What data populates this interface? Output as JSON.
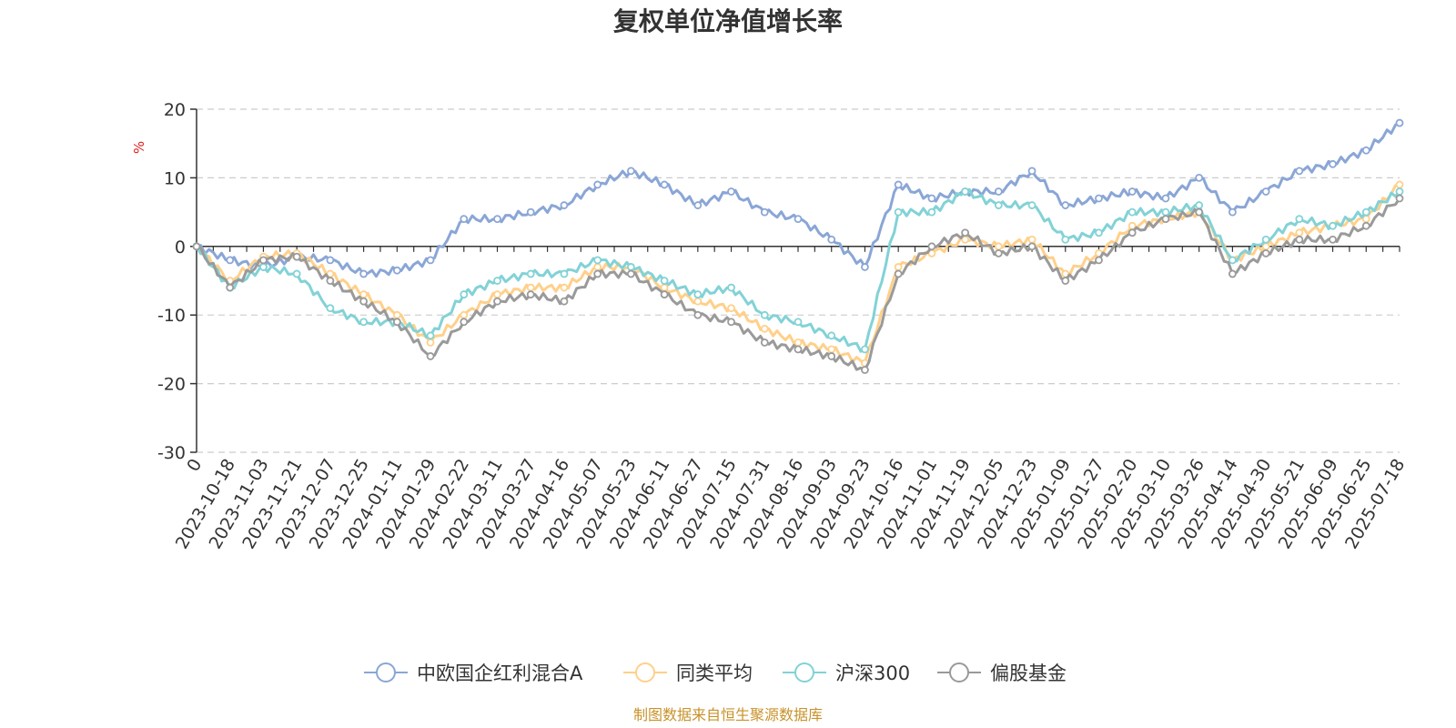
{
  "chart_data": {
    "type": "line",
    "title": "复权单位净值增长率",
    "unit": "%",
    "source_note": "制图数据来自恒生聚源数据库",
    "ylim": [
      -30,
      20
    ],
    "yticks": [
      -30,
      -20,
      -10,
      0,
      10,
      20
    ],
    "grid": true,
    "legend_position": "bottom",
    "x": [
      "0",
      "2023-10-18",
      "2023-11-03",
      "2023-11-21",
      "2023-12-07",
      "2023-12-25",
      "2024-01-11",
      "2024-01-29",
      "2024-02-22",
      "2024-03-11",
      "2024-03-27",
      "2024-04-16",
      "2024-05-07",
      "2024-05-23",
      "2024-06-11",
      "2024-06-27",
      "2024-07-15",
      "2024-07-31",
      "2024-08-16",
      "2024-09-03",
      "2024-09-23",
      "2024-10-16",
      "2024-11-01",
      "2024-11-19",
      "2024-12-05",
      "2024-12-23",
      "2025-01-09",
      "2025-01-27",
      "2025-02-20",
      "2025-03-10",
      "2025-03-26",
      "2025-04-14",
      "2025-04-30",
      "2025-05-21",
      "2025-06-09",
      "2025-06-25",
      "2025-07-18"
    ],
    "series": [
      {
        "name": "中欧国企红利混合A",
        "color": "#8aa6d6",
        "values": [
          0,
          -2,
          -3,
          -1.5,
          -2,
          -4,
          -3.5,
          -2,
          4,
          4,
          5,
          6,
          9,
          11,
          9,
          6,
          8,
          5,
          4,
          1,
          -3,
          9,
          7,
          8,
          8,
          11,
          6,
          7,
          8,
          7,
          10,
          5,
          8,
          11,
          12,
          14,
          18
        ]
      },
      {
        "name": "同类平均",
        "color": "#ffd08a",
        "values": [
          0,
          -5,
          -1.5,
          -1,
          -4,
          -7,
          -10,
          -14,
          -10,
          -7,
          -6,
          -6,
          -3,
          -3,
          -6,
          -8,
          -9,
          -12,
          -14,
          -15,
          -17,
          -3,
          -1,
          1,
          0,
          1,
          -4,
          -1,
          3,
          4,
          5,
          -2,
          0,
          2,
          3,
          4,
          9
        ]
      },
      {
        "name": "沪深300",
        "color": "#82d2d6",
        "values": [
          0,
          -6,
          -3,
          -4,
          -9,
          -11,
          -11,
          -13,
          -7,
          -5,
          -4,
          -4,
          -2,
          -3,
          -5,
          -7,
          -6,
          -10,
          -11,
          -13,
          -15,
          5,
          5,
          8,
          6,
          6,
          1,
          2,
          5,
          5,
          6,
          -2,
          1,
          4,
          3,
          5,
          8
        ]
      },
      {
        "name": "偏股基金",
        "color": "#9a9a9a",
        "values": [
          0,
          -6,
          -2,
          -1.5,
          -5,
          -8,
          -11,
          -16,
          -11,
          -8,
          -7,
          -8,
          -4,
          -4,
          -7,
          -10,
          -11,
          -14,
          -15,
          -16,
          -18,
          -4,
          0,
          2,
          -1,
          0,
          -5,
          -2,
          2,
          4,
          5,
          -4,
          -1,
          1,
          1,
          3,
          7
        ]
      }
    ]
  }
}
